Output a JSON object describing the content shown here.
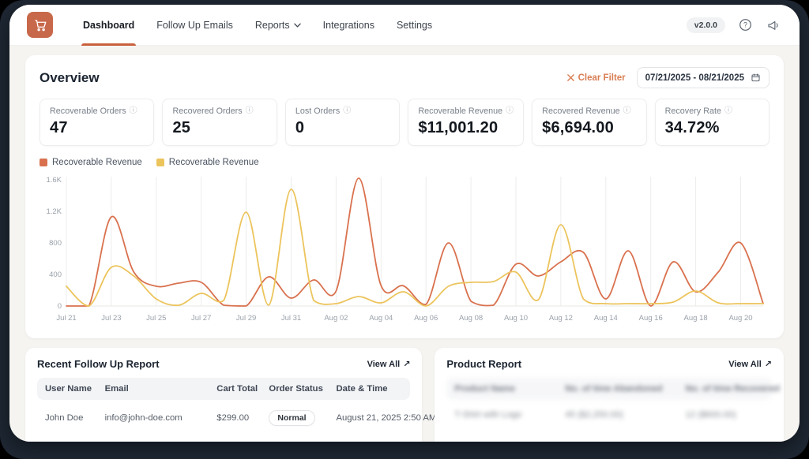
{
  "nav": {
    "items": [
      {
        "label": "Dashboard"
      },
      {
        "label": "Follow Up Emails"
      },
      {
        "label": "Reports"
      },
      {
        "label": "Integrations"
      },
      {
        "label": "Settings"
      }
    ],
    "version_badge": "v2.0.0"
  },
  "overview": {
    "title": "Overview",
    "clear_filter_label": "Clear Filter",
    "date_range": "07/21/2025 - 08/21/2025",
    "stats": [
      {
        "label": "Recoverable Orders",
        "value": "47"
      },
      {
        "label": "Recovered Orders",
        "value": "25"
      },
      {
        "label": "Lost Orders",
        "value": "0"
      },
      {
        "label": "Recoverable Revenue",
        "value": "$11,001.20"
      },
      {
        "label": "Recovered Revenue",
        "value": "$6,694.00"
      },
      {
        "label": "Recovery Rate",
        "value": "34.72%"
      }
    ]
  },
  "chart_data": {
    "type": "line",
    "title": "",
    "xlabel": "",
    "ylabel": "",
    "ylim": [
      0,
      1600
    ],
    "days_span": 31,
    "x_tick_labels": [
      "Jul 21",
      "Jul 23",
      "Jul 25",
      "Jul 27",
      "Jul 29",
      "Jul 31",
      "Aug 02",
      "Aug 04",
      "Aug 06",
      "Aug 08",
      "Aug 10",
      "Aug 12",
      "Aug 14",
      "Aug 16",
      "Aug 18",
      "Aug 20"
    ],
    "x_tick_day_indices": [
      0,
      2,
      4,
      6,
      8,
      10,
      12,
      14,
      16,
      18,
      20,
      22,
      24,
      26,
      28,
      30
    ],
    "y_tick_labels": [
      "0",
      "400",
      "800",
      "1.2K",
      "1.6K"
    ],
    "y_tick_values": [
      0,
      400,
      800,
      1200,
      1600
    ],
    "grid": "vertical",
    "legend_position": "top-left",
    "series": [
      {
        "name": "Recoverable Revenue",
        "color": "#d9714e",
        "values": [
          0,
          0,
          1130,
          430,
          250,
          290,
          300,
          10,
          0,
          370,
          100,
          330,
          190,
          1620,
          260,
          255,
          20,
          800,
          60,
          10,
          530,
          380,
          560,
          680,
          90,
          700,
          0,
          560,
          180,
          430,
          800,
          30
        ]
      },
      {
        "name": "Recoverable Revenue",
        "color": "#ecc45c",
        "values": [
          250,
          0,
          490,
          380,
          90,
          10,
          160,
          70,
          1190,
          10,
          1480,
          70,
          30,
          120,
          40,
          180,
          0,
          250,
          300,
          310,
          430,
          80,
          1030,
          90,
          30,
          30,
          30,
          50,
          190,
          40,
          30,
          30
        ]
      }
    ]
  },
  "followup_report": {
    "title": "Recent Follow Up Report",
    "view_all_label": "View All",
    "headers": [
      "User Name",
      "Email",
      "Cart Total",
      "Order Status",
      "Date & Time"
    ],
    "rows": [
      {
        "user_name": "John Doe",
        "email": "info@john-doe.com",
        "cart_total": "$299.00",
        "order_status": "Normal",
        "date_time": "August 21, 2025 2:50 AM"
      }
    ]
  },
  "product_report": {
    "title": "Product Report",
    "view_all_label": "View All",
    "headers": [
      "Product Name",
      "No. of time Abandoned",
      "No. of time Recovered"
    ],
    "rows": [
      {
        "product_name": "T-Shirt with Logo",
        "abandoned": "45 ($2,250.00)",
        "recovered": "12 ($600.00)"
      }
    ]
  }
}
